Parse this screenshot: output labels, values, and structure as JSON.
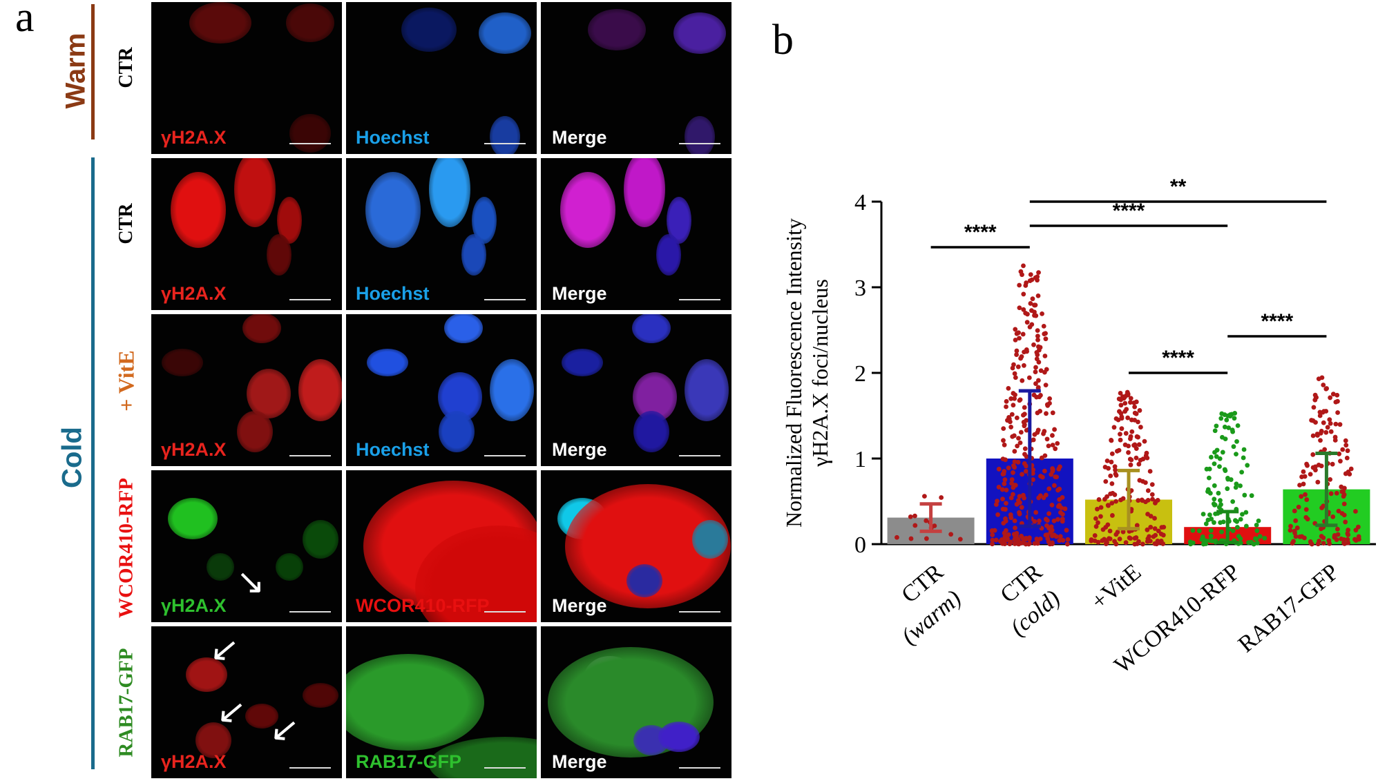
{
  "panel_a": {
    "letter": "a",
    "groups": [
      {
        "name": "Warm",
        "color": "#8b3a14"
      },
      {
        "name": "Cold",
        "color": "#1a6b8c"
      }
    ],
    "rows": [
      {
        "condition": "CTR",
        "condition_color": "#000000",
        "labels": [
          "γH2A.X",
          "Hoechst",
          "Merge"
        ],
        "label_colors": [
          "#e8241e",
          "#1aa0e8",
          "#ffffff"
        ]
      },
      {
        "condition": "CTR",
        "condition_color": "#000000",
        "labels": [
          "γH2A.X",
          "Hoechst",
          "Merge"
        ],
        "label_colors": [
          "#e8241e",
          "#1aa0e8",
          "#ffffff"
        ]
      },
      {
        "condition": "+ VitE",
        "condition_color": "#d2691e",
        "labels": [
          "γH2A.X",
          "Hoechst",
          "Merge"
        ],
        "label_colors": [
          "#e8241e",
          "#1aa0e8",
          "#ffffff"
        ]
      },
      {
        "condition": "WCOR410-RFP",
        "condition_color": "#e81010",
        "labels": [
          "γH2A.X",
          "WCOR410-RFP",
          "Merge"
        ],
        "label_colors": [
          "#2ec02e",
          "#e81010",
          "#ffffff"
        ]
      },
      {
        "condition": "RAB17-GFP",
        "condition_color": "#2e8b22",
        "labels": [
          "γH2A.X",
          "RAB17-GFP",
          "Merge"
        ],
        "label_colors": [
          "#e8241e",
          "#2ec02e",
          "#ffffff"
        ]
      }
    ]
  },
  "panel_b": {
    "letter": "b",
    "significance": [
      {
        "label": "****",
        "from": 0,
        "to": 1
      },
      {
        "label": "****",
        "from": 1,
        "to": 3
      },
      {
        "label": "**",
        "from": 1,
        "to": 4
      },
      {
        "label": "****",
        "from": 2,
        "to": 3
      },
      {
        "label": "****",
        "from": 3,
        "to": 4
      }
    ]
  },
  "chart_data": {
    "type": "bar",
    "title": "",
    "xlabel": "",
    "ylabel": "Normalized Fluorescence Intensity",
    "ylabel2": "γH2A.X foci/nucleus",
    "ylim": [
      0,
      4
    ],
    "yticks": [
      0,
      1,
      2,
      3,
      4
    ],
    "categories": [
      {
        "line1": "CTR",
        "line2": "(warm)"
      },
      {
        "line1": "CTR",
        "line2": "(cold)"
      },
      {
        "line1": "+VitE",
        "line2": ""
      },
      {
        "line1": "WCOR410-RFP",
        "line2": ""
      },
      {
        "line1": "RAB17-GFP",
        "line2": ""
      }
    ],
    "values": [
      0.31,
      1.0,
      0.52,
      0.2,
      0.64
    ],
    "errors": [
      0.16,
      0.79,
      0.34,
      0.18,
      0.42
    ],
    "bar_colors": [
      "#8c8c8c",
      "#1212c0",
      "#c8c010",
      "#e01010",
      "#22cc22"
    ],
    "error_colors": [
      "#c44040",
      "#1a1aa0",
      "#a89020",
      "#1a8a1a",
      "#2a7a2a"
    ],
    "point_colors": [
      "#b01818",
      "#b01818",
      "#b01818",
      "#1a9a1a",
      "#b01818"
    ],
    "point_ranges": [
      [
        0.05,
        0.6
      ],
      [
        0.0,
        3.3
      ],
      [
        0.0,
        1.8
      ],
      [
        0.0,
        1.55
      ],
      [
        0.0,
        1.95
      ]
    ],
    "point_counts": [
      14,
      330,
      180,
      130,
      150
    ]
  }
}
